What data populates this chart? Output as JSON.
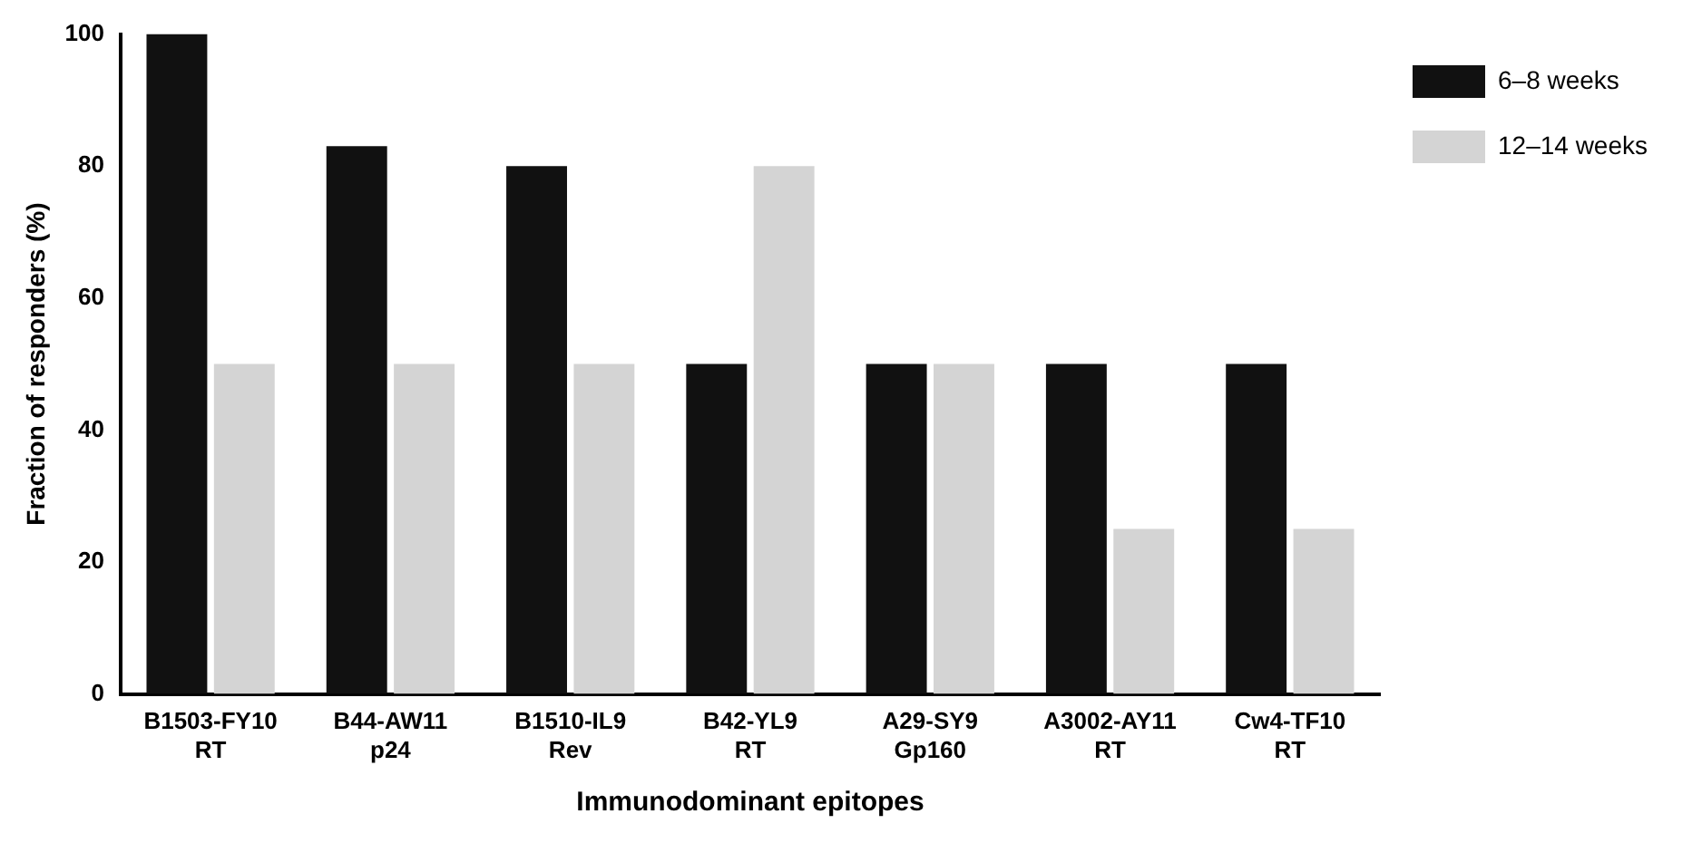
{
  "chart_data": {
    "type": "bar",
    "xlabel": "Immunodominant epitopes",
    "ylabel": "Fraction of responders (%)",
    "categories": [
      "B1503-FY10\nRT",
      "B44-AW11\np24",
      "B1510-IL9\nRev",
      "B42-YL9\nRT",
      "A29-SY9\nGp160",
      "A3002-AY11\nRT",
      "Cw4-TF10\nRT"
    ],
    "series": [
      {
        "name": "6–8 weeks",
        "color": "#111111",
        "values": [
          100,
          83,
          80,
          50,
          50,
          50,
          50
        ]
      },
      {
        "name": "12–14 weeks",
        "color": "#d4d4d4",
        "values": [
          50,
          50,
          50,
          80,
          50,
          25,
          25
        ]
      }
    ],
    "ylim": [
      0,
      100
    ],
    "yticks": [
      0,
      20,
      40,
      60,
      80,
      100
    ],
    "grid": false,
    "legend": "top right"
  }
}
